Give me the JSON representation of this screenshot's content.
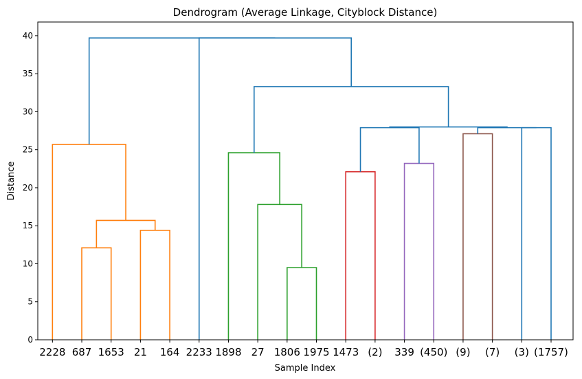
{
  "chart_data": {
    "type": "dendrogram",
    "title": "Dendrogram (Average Linkage, Cityblock Distance)",
    "xlabel": "Sample Index",
    "ylabel": "Distance",
    "ylim": [
      0,
      41.8
    ],
    "yticks": [
      0,
      5,
      10,
      15,
      20,
      25,
      30,
      35,
      40
    ],
    "grid": false,
    "legend": "none",
    "leaf_labels": [
      "2228",
      "687",
      "1653",
      "21",
      "164",
      "2233",
      "1898",
      "27",
      "1806",
      "1975",
      "1473",
      "(2)",
      "339",
      "(450)",
      "(9)",
      "(7)",
      "(3)",
      "(1757)"
    ],
    "colors": {
      "C0": "#1f77b4",
      "C1": "#ff7f0e",
      "C2": "#2ca02c",
      "C3": "#d62728",
      "C4": "#9467bd",
      "C5": "#8c564b"
    },
    "links": [
      {
        "left": 1,
        "right": 2,
        "height": 12.1,
        "color": "C1"
      },
      {
        "left": 3,
        "right": 4,
        "height": 14.4,
        "color": "C1"
      },
      {
        "left": 1.5,
        "right": 3.5,
        "height": 15.7,
        "color": "C1"
      },
      {
        "left": 0,
        "right": 2.5,
        "height": 25.7,
        "color": "C1"
      },
      {
        "left": 8,
        "right": 9,
        "height": 9.5,
        "color": "C2"
      },
      {
        "left": 7,
        "right": 8.5,
        "height": 17.8,
        "color": "C2"
      },
      {
        "left": 6,
        "right": 7.75,
        "height": 24.6,
        "color": "C2"
      },
      {
        "left": 10,
        "right": 11,
        "height": 22.1,
        "color": "C3"
      },
      {
        "left": 12,
        "right": 13,
        "height": 23.2,
        "color": "C4"
      },
      {
        "left": 14,
        "right": 15,
        "height": 27.1,
        "color": "C5"
      },
      {
        "left": 16,
        "right": 17,
        "height": 27.9,
        "color": "C0"
      },
      {
        "left": 14.5,
        "right": 16.5,
        "height": 27.9,
        "color": "C0"
      },
      {
        "left": 10.5,
        "right": 12.5,
        "height": 27.9,
        "color": "C0"
      },
      {
        "left": 11.5,
        "right": 15.5,
        "height": 28.0,
        "color": "C0"
      },
      {
        "left": 6.875,
        "right": 13.5,
        "height": 33.3,
        "color": "C0"
      },
      {
        "left": 5,
        "right": 10.1875,
        "height": 39.7,
        "color": "C0"
      },
      {
        "left": 1.25,
        "right": 7.59375,
        "height": 39.7,
        "color": "C0"
      }
    ]
  }
}
